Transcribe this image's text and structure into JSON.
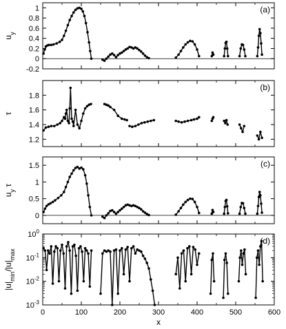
{
  "chart_data": {
    "type": "scatter",
    "xlabel": "x",
    "xlim": [
      0,
      600
    ],
    "x_ticks": [
      "0",
      "100",
      "200",
      "300",
      "400",
      "500",
      "600"
    ],
    "x_tick_values": [
      0,
      100,
      200,
      300,
      400,
      500,
      600
    ],
    "panels": [
      {
        "label": "(a)",
        "ylabel": "u_y",
        "ylim": [
          -0.2,
          1.1
        ],
        "y_ticks": [
          "-0.2",
          "0",
          "0.2",
          "0.4",
          "0.6",
          "0.8",
          "1"
        ],
        "y_tick_values": [
          -0.2,
          0,
          0.2,
          0.4,
          0.6,
          0.8,
          1.0
        ],
        "series": [
          {
            "x": [
              2,
              5,
              8,
              12,
              16,
              22,
              28,
              36,
              44,
              50,
              55,
              60,
              65,
              70,
              75,
              80,
              85,
              90,
              95,
              100,
              104,
              108,
              112,
              116,
              120,
              123,
              126
            ],
            "y": [
              0.1,
              0.18,
              0.24,
              0.26,
              0.27,
              0.27,
              0.28,
              0.3,
              0.33,
              0.37,
              0.45,
              0.55,
              0.66,
              0.76,
              0.84,
              0.91,
              0.96,
              0.99,
              1.0,
              0.98,
              0.93,
              0.84,
              0.7,
              0.52,
              0.32,
              0.15,
              0.0
            ]
          },
          {
            "x": [
              155,
              160,
              165,
              170,
              175,
              180,
              185,
              190,
              195,
              200,
              205,
              210,
              215,
              220,
              225,
              230,
              235,
              240,
              245,
              250,
              255,
              260,
              265,
              270,
              275
            ],
            "y": [
              -0.02,
              -0.04,
              0.0,
              0.04,
              0.08,
              0.1,
              0.07,
              0.03,
              0.07,
              0.1,
              0.12,
              0.15,
              0.18,
              0.2,
              0.23,
              0.22,
              0.2,
              0.22,
              0.2,
              0.17,
              0.14,
              0.1,
              0.06,
              0.03,
              0.01
            ]
          },
          {
            "x": [
              345,
              352,
              358,
              364,
              370,
              376,
              382,
              388,
              394,
              400,
              405
            ],
            "y": [
              0.02,
              0.08,
              0.15,
              0.22,
              0.28,
              0.32,
              0.35,
              0.34,
              0.28,
              0.18,
              0.05
            ]
          },
          {
            "x": [
              438,
              440,
              442
            ],
            "y": [
              0.05,
              0.12,
              0.08
            ]
          },
          {
            "x": [
              470,
              472,
              474,
              476,
              478,
              480
            ],
            "y": [
              0.05,
              0.2,
              0.31,
              0.33,
              0.2,
              0.05
            ]
          },
          {
            "x": [
              510,
              513,
              516,
              519,
              522,
              525
            ],
            "y": [
              0.05,
              0.2,
              0.28,
              0.27,
              0.18,
              0.05
            ]
          },
          {
            "x": [
              556,
              558,
              560,
              562,
              564,
              566,
              568
            ],
            "y": [
              0.05,
              0.22,
              0.45,
              0.58,
              0.5,
              0.3,
              0.08
            ]
          }
        ]
      },
      {
        "label": "(b)",
        "ylabel": "τ",
        "ylim": [
          1.1,
          2.0
        ],
        "y_ticks": [
          "1.2",
          "1.4",
          "1.6",
          "1.8"
        ],
        "y_tick_values": [
          1.2,
          1.4,
          1.6,
          1.8
        ],
        "series": [
          {
            "x": [
              2,
              8,
              15,
              22,
              30,
              38,
              45,
              50,
              55,
              58,
              60,
              62,
              65,
              68,
              70,
              72,
              75,
              78,
              80,
              85,
              90,
              95,
              100,
              105,
              110,
              115,
              120,
              125
            ],
            "y": [
              1.32,
              1.36,
              1.37,
              1.38,
              1.38,
              1.4,
              1.42,
              1.45,
              1.5,
              1.48,
              1.55,
              1.6,
              1.45,
              1.42,
              1.62,
              1.9,
              1.48,
              1.44,
              1.38,
              1.6,
              1.4,
              1.35,
              1.45,
              1.55,
              1.62,
              1.65,
              1.67,
              1.68
            ]
          },
          {
            "x": [
              160,
              165,
              170,
              175,
              185,
              195,
              205,
              212,
              218
            ],
            "y": [
              1.68,
              1.67,
              1.66,
              1.64,
              1.6,
              1.52,
              1.48,
              1.47,
              1.46
            ]
          },
          {
            "x": [
              225,
              232,
              240,
              248,
              256,
              264,
              272,
              280,
              288
            ],
            "y": [
              1.38,
              1.37,
              1.38,
              1.4,
              1.42,
              1.43,
              1.44,
              1.45,
              1.46
            ]
          },
          {
            "x": [
              345,
              352,
              360,
              368,
              376,
              385,
              392,
              400,
              405
            ],
            "y": [
              1.45,
              1.44,
              1.43,
              1.44,
              1.45,
              1.46,
              1.47,
              1.48,
              1.5
            ]
          },
          {
            "x": [
              438,
              440,
              442
            ],
            "y": [
              1.45,
              1.48,
              1.5
            ]
          },
          {
            "x": [
              470,
              473,
              476,
              479
            ],
            "y": [
              1.45,
              1.42,
              1.46,
              1.4
            ]
          },
          {
            "x": [
              510,
              514,
              518,
              522
            ],
            "y": [
              1.4,
              1.35,
              1.3,
              1.38
            ]
          },
          {
            "x": [
              556,
              560,
              564,
              568
            ],
            "y": [
              1.25,
              1.2,
              1.3,
              1.22
            ]
          }
        ]
      },
      {
        "label": "(c)",
        "ylabel": "u_y τ",
        "ylim": [
          -0.25,
          1.75
        ],
        "y_ticks": [
          "0",
          "0.5",
          "1",
          "1.5"
        ],
        "y_tick_values": [
          0,
          0.5,
          1.0,
          1.5
        ],
        "series": [
          {
            "x": [
              2,
              6,
              10,
              15,
              20,
              26,
              32,
              40,
              48,
              55,
              60,
              65,
              70,
              75,
              80,
              85,
              90,
              95,
              100,
              105,
              110,
              114,
              118,
              122,
              126
            ],
            "y": [
              0.1,
              0.2,
              0.28,
              0.33,
              0.36,
              0.4,
              0.45,
              0.52,
              0.6,
              0.7,
              0.85,
              1.0,
              1.15,
              1.25,
              1.35,
              1.42,
              1.45,
              1.4,
              1.43,
              1.38,
              1.2,
              0.95,
              0.6,
              0.25,
              0.0
            ]
          },
          {
            "x": [
              155,
              160,
              165,
              170,
              175,
              180,
              185,
              190,
              195,
              200,
              205,
              210,
              215,
              220,
              225,
              230,
              235,
              240,
              245,
              250,
              255,
              260,
              265,
              270,
              275
            ],
            "y": [
              -0.04,
              -0.08,
              0.0,
              0.06,
              0.13,
              0.15,
              0.1,
              0.05,
              0.1,
              0.15,
              0.2,
              0.25,
              0.3,
              0.32,
              0.3,
              0.28,
              0.3,
              0.28,
              0.25,
              0.22,
              0.18,
              0.12,
              0.08,
              0.04,
              0.01
            ]
          },
          {
            "x": [
              345,
              352,
              358,
              364,
              370,
              376,
              382,
              388,
              394,
              400,
              405
            ],
            "y": [
              0.02,
              0.12,
              0.22,
              0.32,
              0.4,
              0.46,
              0.5,
              0.49,
              0.4,
              0.25,
              0.07
            ]
          },
          {
            "x": [
              438,
              440,
              442
            ],
            "y": [
              0.05,
              0.16,
              0.1
            ]
          },
          {
            "x": [
              470,
              472,
              474,
              476,
              478,
              480
            ],
            "y": [
              0.05,
              0.25,
              0.43,
              0.46,
              0.27,
              0.06
            ]
          },
          {
            "x": [
              510,
              513,
              516,
              519,
              522,
              525
            ],
            "y": [
              0.05,
              0.25,
              0.37,
              0.36,
              0.22,
              0.05
            ]
          },
          {
            "x": [
              556,
              558,
              560,
              562,
              564,
              566,
              568
            ],
            "y": [
              0.05,
              0.28,
              0.55,
              0.7,
              0.6,
              0.35,
              0.08
            ]
          }
        ]
      },
      {
        "label": "(d)",
        "ylabel": "|u|_min/|u|_max",
        "yscale": "log",
        "ylim": [
          0.001,
          1.0
        ],
        "y_ticks": [
          "10^0",
          "10^-1",
          "10^-2",
          "10^-3"
        ],
        "y_tick_values": [
          1.0,
          0.1,
          0.01,
          0.001
        ],
        "series": [
          {
            "x": [
              2,
              6,
              10,
              14,
              18,
              22,
              26,
              30,
              34,
              38,
              42,
              46,
              50,
              54,
              58,
              62,
              66,
              70,
              74,
              78,
              82,
              86,
              90,
              94,
              98,
              102,
              106,
              110,
              114,
              118,
              122,
              126
            ],
            "y": [
              0.25,
              0.2,
              0.03,
              0.2,
              0.15,
              0.3,
              0.008,
              0.18,
              0.3,
              0.25,
              0.01,
              0.2,
              0.35,
              0.15,
              0.005,
              0.3,
              0.45,
              0.2,
              0.003,
              0.3,
              0.35,
              0.12,
              0.004,
              0.25,
              0.3,
              0.18,
              0.01,
              0.25,
              0.2,
              0.15,
              0.006,
              0.2
            ]
          },
          {
            "x": [
              150,
              155,
              160,
              165,
              170,
              175,
              180,
              185,
              190,
              195,
              200,
              205,
              210,
              215,
              220,
              225,
              230,
              235,
              240,
              245,
              250,
              255,
              260,
              265,
              270,
              275,
              280,
              285,
              290
            ],
            "y": [
              0.003,
              0.15,
              0.2,
              0.18,
              0.2,
              0.18,
              0.001,
              0.2,
              0.22,
              0.003,
              0.2,
              0.25,
              0.02,
              0.22,
              0.28,
              0.01,
              0.25,
              0.3,
              0.15,
              0.22,
              0.2,
              0.18,
              0.12,
              0.09,
              0.06,
              0.035,
              0.012,
              0.004,
              0.001
            ]
          },
          {
            "x": [
              345,
              350,
              355,
              360,
              365,
              370,
              375,
              380,
              385,
              390,
              395,
              400,
              405
            ],
            "y": [
              0.02,
              0.1,
              0.005,
              0.15,
              0.2,
              0.01,
              0.25,
              0.3,
              0.02,
              0.28,
              0.22,
              0.05,
              0.15
            ]
          },
          {
            "x": [
              435,
              438,
              441,
              444
            ],
            "y": [
              0.003,
              0.08,
              0.15,
              0.01
            ]
          },
          {
            "x": [
              468,
              471,
              474,
              477,
              480
            ],
            "y": [
              0.002,
              0.08,
              0.15,
              0.06,
              0.003
            ]
          },
          {
            "x": [
              508,
              511,
              514,
              517,
              520,
              523,
              526
            ],
            "y": [
              0.01,
              0.1,
              0.2,
              0.05,
              0.15,
              0.22,
              0.02
            ]
          },
          {
            "x": [
              552,
              555,
              558,
              561,
              564,
              567,
              570
            ],
            "y": [
              0.002,
              0.1,
              0.2,
              0.05,
              0.3,
              0.5,
              0.01
            ]
          }
        ]
      }
    ]
  }
}
